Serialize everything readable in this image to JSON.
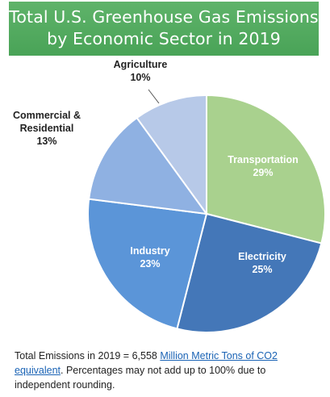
{
  "title": {
    "line1": "Total U.S. Greenhouse Gas Emissions",
    "line2": "by Economic Sector in 2019"
  },
  "chart_data": {
    "type": "pie",
    "title": "Total U.S. Greenhouse Gas Emissions by Economic Sector in 2019",
    "slices": [
      {
        "label": "Transportation",
        "value": 29,
        "value_label": "29%",
        "color": "#a9d18e",
        "label_color": "#ffffff"
      },
      {
        "label": "Electricity",
        "value": 25,
        "value_label": "25%",
        "color": "#4477b8",
        "label_color": "#ffffff"
      },
      {
        "label": "Industry",
        "value": 23,
        "value_label": "23%",
        "color": "#5b95d8",
        "label_color": "#ffffff"
      },
      {
        "label": "Commercial & Residential",
        "label_lines": [
          "Commercial &",
          "Residential"
        ],
        "value": 13,
        "value_label": "13%",
        "color": "#8fb1e2",
        "label_color": "#222222"
      },
      {
        "label": "Agriculture",
        "value": 10,
        "value_label": "10%",
        "color": "#b7c9e8",
        "label_color": "#222222"
      }
    ],
    "start_angle": "12 o'clock",
    "direction": "clockwise",
    "slice_border": "#ffffff"
  },
  "footnote": {
    "prefix": "Total Emissions in 2019 = 6,558 ",
    "link_text": "Million Metric Tons of CO2 equivalent",
    "suffix": ". Percentages may not add up to 100% due to independent rounding."
  }
}
